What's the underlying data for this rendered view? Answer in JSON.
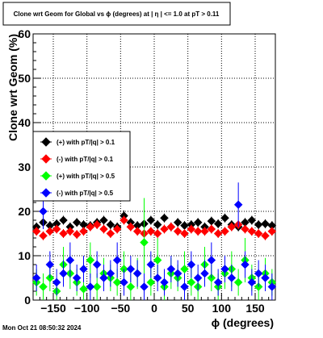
{
  "footer": {
    "timestamp": "Mon Oct 21 08:50:32 2024"
  },
  "chart_data": {
    "type": "scatter",
    "title": "Clone wrt Geom for Global vs ϕ (degrees) at |  η  | <= 1.0 at pT > 0.11",
    "xlabel": "ϕ (degrees)",
    "ylabel": "Clone wrt Geom (%)",
    "xlim": [
      -180,
      180
    ],
    "ylim": [
      0,
      60
    ],
    "grid": true,
    "legend_position": "left-middle",
    "x_ticks": [
      -150,
      -100,
      -50,
      0,
      50,
      100,
      150
    ],
    "x_tick_labels": [
      "−150",
      "−100",
      "−50",
      "0",
      "50",
      "100",
      "150"
    ],
    "y_ticks": [
      0,
      10,
      20,
      30,
      40,
      50,
      60
    ],
    "y_tick_labels": [
      "0",
      "10",
      "20",
      "30",
      "40",
      "50",
      "60"
    ],
    "series": [
      {
        "name": "(+) with pT/|q| > 0.1",
        "color": "#000000",
        "marker": "diamond",
        "x": [
          -175,
          -165,
          -155,
          -145,
          -135,
          -125,
          -115,
          -105,
          -95,
          -85,
          -75,
          -65,
          -55,
          -45,
          -35,
          -25,
          -15,
          -5,
          5,
          15,
          25,
          35,
          45,
          55,
          65,
          75,
          85,
          95,
          105,
          115,
          125,
          135,
          145,
          155,
          165,
          175
        ],
        "y": [
          16.5,
          17.5,
          16.8,
          17.2,
          18.0,
          16.5,
          17.5,
          17.0,
          16.8,
          17.5,
          18.0,
          17.0,
          16.5,
          19.0,
          17.5,
          16.8,
          17.2,
          18.0,
          17.0,
          18.5,
          16.5,
          17.5,
          16.8,
          17.0,
          17.5,
          16.5,
          17.8,
          17.2,
          18.5,
          17.0,
          16.5,
          17.5,
          18.0,
          17.0,
          17.2,
          16.8
        ],
        "err": [
          1.0,
          1.0,
          1.0,
          1.0,
          1.0,
          1.0,
          1.0,
          1.0,
          1.0,
          1.0,
          1.0,
          1.0,
          1.0,
          1.2,
          1.0,
          1.0,
          1.0,
          1.0,
          1.0,
          1.0,
          1.0,
          1.0,
          1.0,
          1.0,
          1.0,
          1.0,
          1.0,
          1.0,
          1.0,
          1.0,
          1.0,
          1.0,
          1.0,
          1.0,
          1.0,
          1.0
        ]
      },
      {
        "name": "(-) with pT/|q| > 0.1",
        "color": "#ff0000",
        "marker": "diamond",
        "x": [
          -175,
          -165,
          -155,
          -145,
          -135,
          -125,
          -115,
          -105,
          -95,
          -85,
          -75,
          -65,
          -55,
          -45,
          -35,
          -25,
          -15,
          -5,
          5,
          15,
          25,
          35,
          45,
          55,
          65,
          75,
          85,
          95,
          105,
          115,
          125,
          135,
          145,
          155,
          165,
          175
        ],
        "y": [
          15.5,
          14.5,
          15.5,
          16.0,
          15.0,
          15.5,
          14.8,
          15.5,
          16.5,
          17.0,
          16.0,
          15.0,
          16.0,
          18.0,
          16.5,
          15.5,
          15.0,
          15.5,
          15.0,
          16.0,
          16.5,
          15.5,
          15.0,
          16.0,
          15.5,
          15.5,
          16.0,
          15.0,
          15.5,
          16.5,
          17.0,
          16.0,
          15.5,
          15.0,
          14.5,
          15.5
        ],
        "err": [
          1.0,
          1.0,
          1.0,
          1.0,
          1.0,
          1.0,
          1.0,
          1.0,
          1.0,
          1.0,
          1.0,
          1.0,
          1.0,
          1.0,
          1.0,
          1.0,
          1.0,
          1.0,
          1.0,
          1.0,
          1.0,
          1.0,
          1.0,
          1.0,
          1.0,
          1.0,
          1.0,
          1.0,
          1.0,
          1.0,
          1.0,
          1.0,
          1.0,
          1.0,
          1.0,
          1.0
        ]
      },
      {
        "name": "(+) with pT/|q| > 0.5",
        "color": "#00ff00",
        "marker": "diamond",
        "x": [
          -175,
          -165,
          -155,
          -145,
          -135,
          -125,
          -115,
          -105,
          -95,
          -85,
          -75,
          -65,
          -55,
          -45,
          -35,
          -25,
          -15,
          -5,
          5,
          15,
          25,
          35,
          45,
          55,
          65,
          75,
          85,
          95,
          105,
          115,
          125,
          135,
          145,
          155,
          165,
          175
        ],
        "y": [
          4.0,
          3.0,
          5.0,
          2.0,
          8.0,
          6.0,
          4.0,
          2.5,
          9.0,
          3.0,
          6.0,
          5.0,
          4.0,
          7.0,
          3.0,
          6.0,
          13.0,
          4.0,
          9.0,
          3.0,
          6.0,
          5.0,
          7.0,
          4.0,
          3.0,
          8.0,
          5.0,
          3.0,
          6.0,
          7.0,
          4.0,
          9.0,
          5.0,
          3.0,
          6.0,
          4.0
        ],
        "err": [
          3.0,
          3.0,
          3.0,
          2.5,
          4.0,
          3.5,
          3.0,
          2.5,
          4.0,
          3.0,
          3.5,
          3.0,
          3.0,
          4.0,
          3.0,
          3.5,
          10.0,
          3.0,
          5.0,
          3.0,
          3.5,
          3.0,
          4.0,
          3.0,
          3.0,
          4.0,
          3.0,
          3.0,
          3.5,
          4.0,
          3.0,
          5.0,
          3.0,
          3.0,
          3.5,
          3.0
        ]
      },
      {
        "name": "(-) with pT/|q| > 0.5",
        "color": "#0000ff",
        "marker": "diamond",
        "x": [
          -175,
          -165,
          -155,
          -145,
          -135,
          -125,
          -115,
          -105,
          -95,
          -85,
          -75,
          -65,
          -55,
          -45,
          -35,
          -25,
          -15,
          -5,
          5,
          15,
          25,
          35,
          45,
          55,
          65,
          75,
          85,
          95,
          105,
          115,
          125,
          135,
          145,
          155,
          165,
          175
        ],
        "y": [
          5.0,
          20.0,
          8.0,
          4.0,
          6.0,
          9.0,
          5.0,
          7.0,
          3.0,
          8.0,
          5.0,
          6.0,
          9.0,
          4.0,
          7.0,
          6.0,
          3.0,
          8.0,
          5.0,
          4.0,
          7.0,
          6.0,
          3.0,
          8.0,
          5.0,
          6.0,
          9.0,
          4.0,
          7.0,
          5.0,
          21.5,
          8.0,
          4.0,
          6.0,
          5.0,
          3.0
        ],
        "err": [
          3.0,
          4.0,
          3.0,
          3.0,
          3.0,
          4.0,
          3.0,
          3.0,
          3.0,
          3.0,
          3.0,
          3.0,
          4.0,
          3.0,
          3.0,
          3.0,
          3.0,
          3.0,
          3.0,
          3.0,
          3.0,
          3.0,
          3.0,
          3.0,
          3.0,
          3.0,
          4.0,
          3.0,
          3.0,
          3.0,
          5.0,
          3.0,
          3.0,
          3.0,
          3.0,
          3.0
        ]
      }
    ]
  }
}
